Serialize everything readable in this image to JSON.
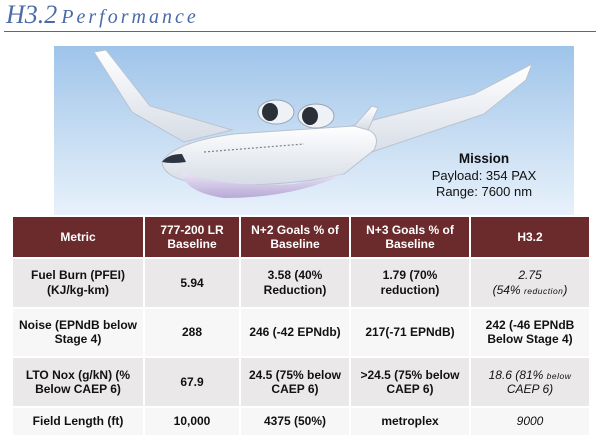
{
  "header": {
    "title_main": "H3.2",
    "title_sub": "Performance"
  },
  "mission": {
    "title": "Mission",
    "payload": "Payload: 354 PAX",
    "range": "Range: 7600 nm"
  },
  "table": {
    "headers": [
      "Metric",
      "777-200 LR Baseline",
      "N+2 Goals % of Baseline",
      "N+3 Goals % of Baseline",
      "H3.2"
    ],
    "rows": [
      {
        "metric": "Fuel Burn (PFEI) (KJ/kg-km)",
        "baseline": "5.94",
        "n2": "3.58 (40% Reduction)",
        "n3": "1.79 (70% reduction)",
        "h32": "2.75",
        "h32_note_main": "(54% ",
        "h32_note_small": "reduction",
        "h32_note_end": ")"
      },
      {
        "metric": "Noise (EPNdB below Stage 4)",
        "baseline": "288",
        "n2": "246 (-42 EPNdb)",
        "n3": "217(-71 EPNdB)",
        "h32": "242 (-46 EPNdB Below Stage 4)"
      },
      {
        "metric": "LTO Nox (g/kN) (% Below CAEP 6)",
        "baseline": "67.9",
        "n2": "24.5 (75% below CAEP 6)",
        "n3": ">24.5 (75% below CAEP 6)",
        "h32_main": "18.6 (81% ",
        "h32_small": "below",
        "h32_end": " CAEP 6)"
      },
      {
        "metric": "Field Length (ft)",
        "baseline": "10,000",
        "n2": "4375 (50%)",
        "n3": "metroplex",
        "h32": "9000"
      }
    ]
  },
  "colors": {
    "title": "#4a6aa8",
    "header_bg": "#6b2a2c",
    "h32_green": "#3a8a2e"
  }
}
